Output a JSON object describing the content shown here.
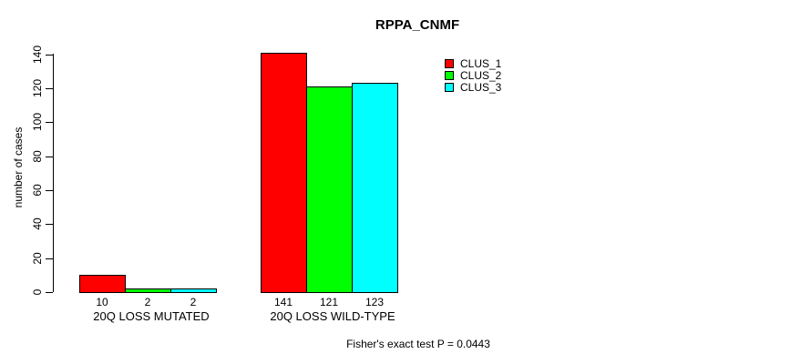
{
  "chart_data": {
    "type": "bar",
    "title": "RPPA_CNMF",
    "xlabel": "",
    "ylabel": "number of cases",
    "categories": [
      "20Q LOSS MUTATED",
      "20Q LOSS WILD-TYPE"
    ],
    "series": [
      {
        "name": "CLUS_1",
        "color": "#FF0000",
        "values": [
          10,
          141
        ]
      },
      {
        "name": "CLUS_2",
        "color": "#00FF00",
        "values": [
          2,
          121
        ]
      },
      {
        "name": "CLUS_3",
        "color": "#00FFFF",
        "values": [
          2,
          123
        ]
      }
    ],
    "bar_labels": [
      [
        "10",
        "2",
        "2"
      ],
      [
        "141",
        "121",
        "123"
      ]
    ],
    "yticks": [
      0,
      20,
      40,
      60,
      80,
      100,
      120,
      140
    ],
    "ylim": [
      0,
      140
    ],
    "grid": false,
    "legend_position": "top-right",
    "annotation": "Fisher's exact test P = 0.0443"
  }
}
